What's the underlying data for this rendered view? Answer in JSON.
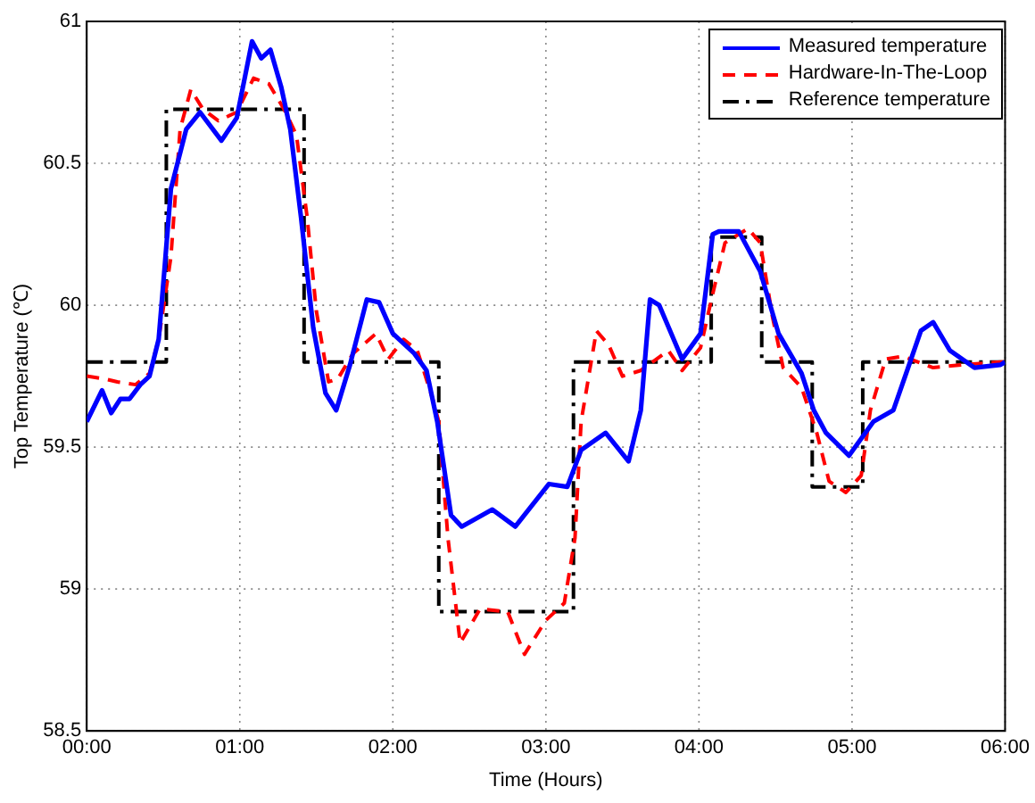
{
  "chart_data": {
    "type": "line",
    "xlabel": "Time (Hours)",
    "ylabel": "Top Temperature (℃)",
    "xlim": [
      0,
      6
    ],
    "ylim": [
      58.5,
      61
    ],
    "xticks": [
      {
        "value": 0,
        "label": "00:00"
      },
      {
        "value": 1,
        "label": "01:00"
      },
      {
        "value": 2,
        "label": "02:00"
      },
      {
        "value": 3,
        "label": "03:00"
      },
      {
        "value": 4,
        "label": "04:00"
      },
      {
        "value": 5,
        "label": "05:00"
      },
      {
        "value": 6,
        "label": "06:00"
      }
    ],
    "yticks": [
      58.5,
      59,
      59.5,
      60,
      60.5,
      61
    ],
    "grid": true,
    "legend": "top right",
    "marker": "none",
    "series": [
      {
        "name": "Measured temperature",
        "color": "#0000ff",
        "line_style": "solid",
        "x": [
          0,
          0.1,
          0.16,
          0.22,
          0.28,
          0.35,
          0.41,
          0.47,
          0.51,
          0.55,
          0.65,
          0.74,
          0.88,
          0.98,
          1.08,
          1.14,
          1.2,
          1.27,
          1.33,
          1.4,
          1.48,
          1.56,
          1.63,
          1.72,
          1.83,
          1.91,
          2.0,
          2.14,
          2.22,
          2.29,
          2.38,
          2.45,
          2.65,
          2.8,
          3.02,
          3.14,
          3.23,
          3.39,
          3.54,
          3.62,
          3.68,
          3.74,
          3.89,
          4.01,
          4.09,
          4.13,
          4.26,
          4.4,
          4.52,
          4.67,
          4.75,
          4.83,
          4.98,
          5.14,
          5.27,
          5.45,
          5.53,
          5.64,
          5.8,
          5.97,
          6.0
        ],
        "values": [
          59.59,
          59.7,
          59.62,
          59.67,
          59.67,
          59.72,
          59.75,
          59.88,
          60.14,
          60.41,
          60.62,
          60.68,
          60.58,
          60.66,
          60.93,
          60.87,
          60.9,
          60.77,
          60.62,
          60.31,
          59.92,
          59.69,
          59.63,
          59.79,
          60.02,
          60.01,
          59.9,
          59.83,
          59.77,
          59.59,
          59.26,
          59.22,
          59.28,
          59.22,
          59.37,
          59.36,
          59.49,
          59.55,
          59.45,
          59.63,
          60.02,
          60.0,
          59.81,
          59.9,
          60.25,
          60.26,
          60.26,
          60.12,
          59.9,
          59.76,
          59.63,
          59.55,
          59.47,
          59.59,
          59.63,
          59.91,
          59.94,
          59.84,
          59.78,
          59.79,
          59.8
        ]
      },
      {
        "name": "Hardware-In-The-Loop",
        "color": "#ff0000",
        "line_style": "dashed",
        "x": [
          0,
          0.12,
          0.2,
          0.32,
          0.41,
          0.47,
          0.55,
          0.61,
          0.68,
          0.76,
          0.86,
          0.98,
          1.09,
          1.19,
          1.29,
          1.37,
          1.44,
          1.5,
          1.58,
          1.64,
          1.74,
          1.89,
          1.97,
          2.07,
          2.16,
          2.26,
          2.3,
          2.36,
          2.44,
          2.57,
          2.75,
          2.86,
          3.0,
          3.12,
          3.19,
          3.23,
          3.33,
          3.41,
          3.5,
          3.62,
          3.8,
          3.89,
          4.01,
          4.09,
          4.17,
          4.32,
          4.4,
          4.48,
          4.55,
          4.67,
          4.77,
          4.85,
          4.96,
          5.06,
          5.12,
          5.22,
          5.33,
          5.53,
          5.72,
          5.97,
          6.0
        ],
        "values": [
          59.75,
          59.74,
          59.73,
          59.72,
          59.76,
          59.88,
          60.17,
          60.62,
          60.76,
          60.69,
          60.65,
          60.68,
          60.8,
          60.78,
          60.69,
          60.6,
          60.31,
          59.98,
          59.73,
          59.74,
          59.83,
          59.9,
          59.81,
          59.88,
          59.84,
          59.67,
          59.59,
          59.18,
          58.81,
          58.93,
          58.92,
          58.77,
          58.89,
          58.95,
          59.18,
          59.59,
          59.91,
          59.86,
          59.75,
          59.77,
          59.84,
          59.77,
          59.85,
          60.04,
          60.22,
          60.27,
          60.22,
          59.96,
          59.78,
          59.71,
          59.55,
          59.38,
          59.34,
          59.4,
          59.63,
          59.81,
          59.82,
          59.78,
          59.79,
          59.8,
          59.8
        ]
      },
      {
        "name": "Reference temperature",
        "color": "#000000",
        "line_style": "dashdot",
        "x": [
          0,
          0.52,
          0.52,
          1.42,
          1.42,
          2.3,
          2.3,
          3.18,
          3.18,
          4.08,
          4.08,
          4.41,
          4.41,
          4.74,
          4.74,
          5.07,
          5.07,
          6.0
        ],
        "values": [
          59.8,
          59.8,
          60.69,
          60.69,
          59.8,
          59.8,
          58.92,
          58.92,
          59.8,
          59.8,
          60.24,
          60.24,
          59.8,
          59.8,
          59.36,
          59.36,
          59.8,
          59.8
        ]
      }
    ]
  }
}
